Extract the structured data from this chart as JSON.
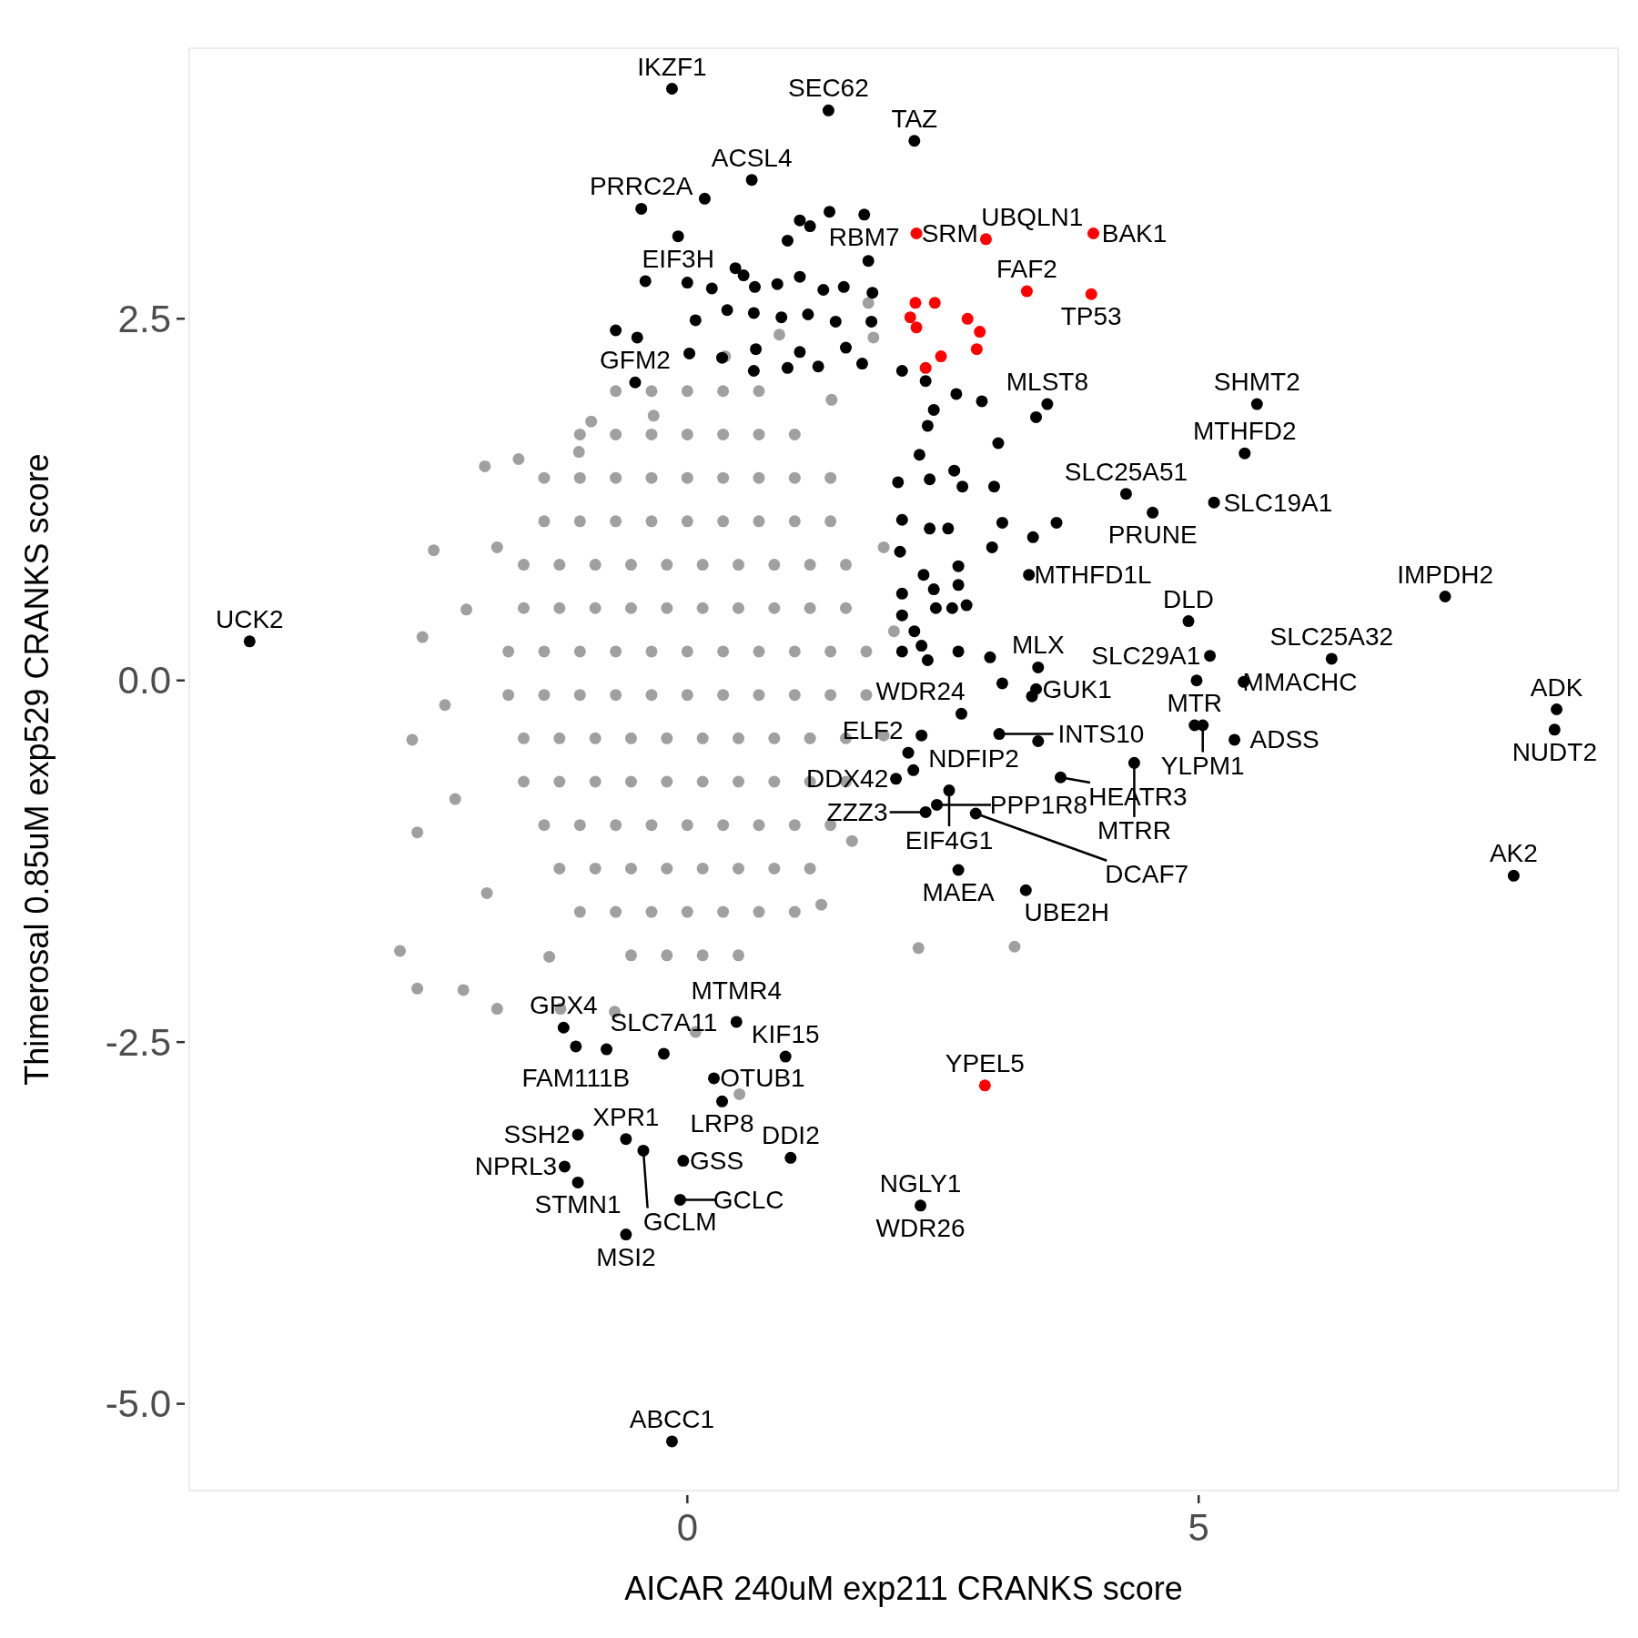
{
  "chart_data": {
    "type": "scatter",
    "xlabel": "AICAR 240uM exp211 CRANKS score",
    "ylabel": "Thimerosal 0.85uM exp529 CRANKS score",
    "xlim": [
      -4.87,
      9.1
    ],
    "ylim": [
      -5.6,
      4.37
    ],
    "xticks": [
      0,
      5
    ],
    "yticks": [
      {
        "value": -5,
        "label": "-5.0"
      },
      {
        "value": -2.5,
        "label": "-2.5"
      },
      {
        "value": 0,
        "label": "0.0"
      },
      {
        "value": 2.5,
        "label": "2.5"
      }
    ],
    "marker": "circle",
    "series": [
      {
        "color": "#a0a0a0",
        "x": [
          -0.7,
          -0.35,
          0,
          0.35,
          0.7,
          -1.05,
          -0.7,
          -0.35,
          0,
          0.35,
          0.7,
          1.05,
          -1.4,
          -1.05,
          -0.7,
          -0.35,
          0,
          0.35,
          0.7,
          1.05,
          1.4,
          -1.4,
          -1.05,
          -0.7,
          -0.35,
          0,
          0.35,
          0.7,
          1.05,
          1.4,
          -1.6,
          -1.25,
          -0.9,
          -0.55,
          -0.2,
          0.15,
          0.5,
          0.85,
          1.2,
          1.55,
          -1.6,
          -1.25,
          -0.9,
          -0.55,
          -0.2,
          0.15,
          0.5,
          0.85,
          1.2,
          1.55,
          -1.75,
          -1.4,
          -1.05,
          -0.7,
          -0.35,
          0,
          0.35,
          0.7,
          1.05,
          1.4,
          1.75,
          -1.75,
          -1.4,
          -1.05,
          -0.7,
          -0.35,
          0,
          0.35,
          0.7,
          1.05,
          1.4,
          1.75,
          -1.6,
          -1.25,
          -0.9,
          -0.55,
          -0.2,
          0.15,
          0.5,
          0.85,
          1.2,
          1.55,
          -1.6,
          -1.25,
          -0.9,
          -0.55,
          -0.2,
          0.15,
          0.5,
          0.85,
          1.2,
          1.55,
          -1.4,
          -1.05,
          -0.7,
          -0.35,
          0,
          0.35,
          0.7,
          1.05,
          1.4,
          -1.25,
          -0.9,
          -0.55,
          -0.2,
          0.15,
          0.5,
          0.85,
          1.2,
          -1.05,
          -0.7,
          -0.35,
          0,
          0.35,
          0.7,
          1.05,
          -0.55,
          -0.2,
          0.15,
          0.5,
          -2.48,
          -1.98,
          -1.65,
          -2.59,
          -2.69,
          -2.64,
          -2.81,
          -2.64,
          -2.19,
          -1.86,
          -1.24,
          -0.71,
          0.08,
          0.51,
          2.26,
          3.2,
          2.02,
          1.92,
          1.82,
          1.77,
          0.37,
          0.9,
          -1.06,
          -1.86,
          -2.16,
          -2.37,
          -2.27,
          -1.96,
          -1.35,
          1.31,
          1.61,
          1.92,
          -0.33,
          -0.94,
          1.41
        ],
        "values": [
          2.0,
          2.0,
          2.0,
          2.0,
          2.0,
          1.7,
          1.7,
          1.7,
          1.7,
          1.7,
          1.7,
          1.7,
          1.4,
          1.4,
          1.4,
          1.4,
          1.4,
          1.4,
          1.4,
          1.4,
          1.4,
          1.1,
          1.1,
          1.1,
          1.1,
          1.1,
          1.1,
          1.1,
          1.1,
          1.1,
          0.8,
          0.8,
          0.8,
          0.8,
          0.8,
          0.8,
          0.8,
          0.8,
          0.8,
          0.8,
          0.5,
          0.5,
          0.5,
          0.5,
          0.5,
          0.5,
          0.5,
          0.5,
          0.5,
          0.5,
          0.2,
          0.2,
          0.2,
          0.2,
          0.2,
          0.2,
          0.2,
          0.2,
          0.2,
          0.2,
          0.2,
          -0.1,
          -0.1,
          -0.1,
          -0.1,
          -0.1,
          -0.1,
          -0.1,
          -0.1,
          -0.1,
          -0.1,
          -0.1,
          -0.4,
          -0.4,
          -0.4,
          -0.4,
          -0.4,
          -0.4,
          -0.4,
          -0.4,
          -0.4,
          -0.4,
          -0.7,
          -0.7,
          -0.7,
          -0.7,
          -0.7,
          -0.7,
          -0.7,
          -0.7,
          -0.7,
          -0.7,
          -1.0,
          -1.0,
          -1.0,
          -1.0,
          -1.0,
          -1.0,
          -1.0,
          -1.0,
          -1.0,
          -1.3,
          -1.3,
          -1.3,
          -1.3,
          -1.3,
          -1.3,
          -1.3,
          -1.3,
          -1.6,
          -1.6,
          -1.6,
          -1.6,
          -1.6,
          -1.6,
          -1.6,
          -1.9,
          -1.9,
          -1.9,
          -1.9,
          0.9,
          1.48,
          1.53,
          0.3,
          -0.41,
          -1.05,
          -1.87,
          -2.13,
          -2.14,
          -2.27,
          -2.27,
          -2.29,
          -2.43,
          -2.86,
          -1.85,
          -1.84,
          0.34,
          0.92,
          2.37,
          2.61,
          2.24,
          2.39,
          1.58,
          0.92,
          0.49,
          -0.17,
          -0.82,
          -1.47,
          -1.91,
          -1.55,
          -1.11,
          -0.38,
          1.83,
          1.79,
          1.94
        ]
      },
      {
        "color": "#000000",
        "x": [
          -4.28,
          -0.15,
          1.38,
          2.22,
          0.63,
          -0.45,
          1.73,
          -0.09,
          -0.51,
          3.52,
          5.57,
          5.45,
          4.29,
          5.15,
          4.55,
          7.41,
          3.34,
          5.11,
          6.3,
          4.9,
          3.43,
          5.44,
          8.5,
          8.48,
          5.04,
          5.35,
          3.41,
          2.68,
          2.16,
          2.21,
          2.04,
          2.56,
          4.96,
          4.37,
          3.05,
          3.65,
          2.82,
          2.33,
          2.44,
          2.65,
          3.31,
          8.08,
          -1.21,
          -0.23,
          0.48,
          -1.09,
          0.96,
          0.26,
          0.34,
          -0.6,
          1.01,
          2.28,
          -1.07,
          -1.2,
          -1.07,
          -0.43,
          -0.07,
          -0.04,
          -0.6,
          -0.15,
          0.17,
          1.1,
          1.39,
          1.2,
          1.77,
          0.47,
          0.98,
          -0.41,
          0.0,
          0.24,
          0.55,
          0.66,
          0.88,
          1.1,
          1.33,
          1.53,
          1.81,
          0.08,
          0.39,
          0.65,
          0.92,
          1.18,
          1.45,
          1.8,
          -0.7,
          -0.49,
          0.02,
          0.34,
          0.67,
          1.1,
          1.28,
          1.55,
          1.71,
          0.65,
          0.98,
          2.1,
          2.33,
          2.63,
          2.88,
          2.41,
          2.35,
          3.04,
          2.27,
          2.61,
          2.06,
          2.37,
          2.69,
          3.0,
          3.08,
          3.61,
          3.38,
          2.1,
          2.37,
          2.55,
          2.98,
          2.08,
          2.31,
          2.65,
          2.41,
          2.65,
          2.1,
          2.43,
          2.59,
          2.73,
          2.1,
          2.22,
          2.29,
          2.1,
          2.35,
          2.65,
          2.96,
          3.08,
          3.37,
          3.43,
          2.29,
          3.41,
          4.98,
          -0.79
        ],
        "values": [
          0.27,
          4.09,
          3.94,
          3.73,
          3.46,
          3.26,
          3.22,
          3.07,
          2.06,
          1.91,
          1.91,
          1.57,
          1.29,
          1.23,
          1.16,
          0.58,
          0.73,
          0.17,
          0.15,
          0.41,
          0.09,
          -0.01,
          -0.2,
          -0.34,
          -0.31,
          -0.41,
          -0.06,
          -0.23,
          -0.5,
          -0.62,
          -0.68,
          -0.76,
          -0.31,
          -0.57,
          -0.37,
          -0.67,
          -0.92,
          -0.91,
          -0.86,
          -1.31,
          -1.45,
          -1.35,
          -2.4,
          -2.58,
          -2.36,
          -2.53,
          -2.6,
          -2.75,
          -2.91,
          -3.17,
          -3.3,
          -3.63,
          -3.14,
          -3.36,
          -3.47,
          -3.25,
          -3.59,
          -3.32,
          -3.83,
          -5.26,
          3.33,
          3.18,
          3.24,
          3.14,
          2.9,
          2.85,
          3.04,
          2.76,
          2.75,
          2.71,
          2.8,
          2.72,
          2.74,
          2.79,
          2.7,
          2.72,
          2.68,
          2.49,
          2.56,
          2.54,
          2.51,
          2.53,
          2.48,
          2.48,
          2.42,
          2.37,
          2.26,
          2.23,
          2.29,
          2.27,
          2.17,
          2.3,
          2.19,
          2.14,
          2.16,
          2.14,
          2.07,
          1.98,
          1.93,
          1.87,
          1.76,
          1.64,
          1.56,
          1.45,
          1.37,
          1.39,
          1.34,
          1.34,
          1.09,
          1.09,
          0.99,
          1.11,
          1.05,
          1.05,
          0.92,
          0.89,
          0.73,
          0.79,
          0.63,
          0.66,
          0.6,
          0.5,
          0.5,
          0.52,
          0.45,
          0.34,
          0.24,
          0.2,
          0.14,
          0.2,
          0.16,
          -0.02,
          -0.11,
          -0.42,
          -0.38,
          1.82,
          0.0,
          -2.55
        ]
      },
      {
        "color": "#ff0000",
        "x": [
          2.24,
          2.92,
          3.97,
          3.32,
          3.95,
          2.23,
          2.42,
          2.18,
          2.24,
          2.74,
          2.86,
          2.83,
          2.48,
          2.33,
          2.91
        ],
        "values": [
          3.09,
          3.05,
          3.09,
          2.69,
          2.67,
          2.61,
          2.61,
          2.51,
          2.44,
          2.5,
          2.41,
          2.29,
          2.24,
          2.16,
          -2.8
        ]
      }
    ],
    "annotations": [
      {
        "text": "UCK2",
        "x": -4.28,
        "y": 0.27
      },
      {
        "text": "IKZF1",
        "x": -0.15,
        "y": 4.09
      },
      {
        "text": "SEC62",
        "x": 1.38,
        "y": 3.94
      },
      {
        "text": "TAZ",
        "x": 2.22,
        "y": 3.73
      },
      {
        "text": "ACSL4",
        "x": 0.63,
        "y": 3.46
      },
      {
        "text": "PRRC2A",
        "x": -0.45,
        "y": 3.26
      },
      {
        "text": "RBM7",
        "x": 1.73,
        "y": 3.22
      },
      {
        "text": "EIF3H",
        "x": -0.09,
        "y": 3.07
      },
      {
        "text": "SRM",
        "x": 2.24,
        "y": 3.09
      },
      {
        "text": "UBQLN1",
        "x": 2.92,
        "y": 3.05
      },
      {
        "text": "BAK1",
        "x": 3.97,
        "y": 3.09
      },
      {
        "text": "FAF2",
        "x": 3.32,
        "y": 2.69
      },
      {
        "text": "TP53",
        "x": 3.95,
        "y": 2.67
      },
      {
        "text": "GFM2",
        "x": -0.51,
        "y": 2.06
      },
      {
        "text": "MLST8",
        "x": 3.52,
        "y": 1.91
      },
      {
        "text": "SHMT2",
        "x": 5.57,
        "y": 1.91
      },
      {
        "text": "MTHFD2",
        "x": 5.45,
        "y": 1.57
      },
      {
        "text": "SLC25A51",
        "x": 4.29,
        "y": 1.29
      },
      {
        "text": "SLC19A1",
        "x": 5.15,
        "y": 1.23
      },
      {
        "text": "PRUNE",
        "x": 4.55,
        "y": 1.16
      },
      {
        "text": "IMPDH2",
        "x": 7.41,
        "y": 0.58
      },
      {
        "text": "MTHFD1L",
        "x": 3.34,
        "y": 0.73
      },
      {
        "text": "SLC29A1",
        "x": 5.11,
        "y": 0.17
      },
      {
        "text": "SLC25A32",
        "x": 6.3,
        "y": 0.15
      },
      {
        "text": "DLD",
        "x": 4.9,
        "y": 0.41
      },
      {
        "text": "MLX",
        "x": 3.43,
        "y": 0.09
      },
      {
        "text": "MMACHC",
        "x": 5.44,
        "y": -0.01
      },
      {
        "text": "ADK",
        "x": 8.5,
        "y": -0.2
      },
      {
        "text": "NUDT2",
        "x": 8.48,
        "y": -0.34
      },
      {
        "text": "YLPM1",
        "x": 5.04,
        "y": -0.31
      },
      {
        "text": "ADSS",
        "x": 5.35,
        "y": -0.41
      },
      {
        "text": "GUK1",
        "x": 3.41,
        "y": -0.06
      },
      {
        "text": "WDR24",
        "x": 2.68,
        "y": -0.23
      },
      {
        "text": "ELF2",
        "x": 2.16,
        "y": -0.5
      },
      {
        "text": "NDFIP2",
        "x": 2.21,
        "y": -0.62
      },
      {
        "text": "DDX42",
        "x": 2.04,
        "y": -0.68
      },
      {
        "text": "EIF4G1",
        "x": 2.56,
        "y": -0.76
      },
      {
        "text": "MTR",
        "x": 4.96,
        "y": -0.31
      },
      {
        "text": "MTRR",
        "x": 4.37,
        "y": -0.57
      },
      {
        "text": "INTS10",
        "x": 3.05,
        "y": -0.37
      },
      {
        "text": "HEATR3",
        "x": 3.65,
        "y": -0.67
      },
      {
        "text": "DCAF7",
        "x": 2.82,
        "y": -0.92
      },
      {
        "text": "ZZZ3",
        "x": 2.33,
        "y": -0.91
      },
      {
        "text": "PPP1R8",
        "x": 2.44,
        "y": -0.86
      },
      {
        "text": "MAEA",
        "x": 2.65,
        "y": -1.31
      },
      {
        "text": "UBE2H",
        "x": 3.31,
        "y": -1.45
      },
      {
        "text": "AK2",
        "x": 8.08,
        "y": -1.35
      },
      {
        "text": "GPX4",
        "x": -1.21,
        "y": -2.4
      },
      {
        "text": "SLC7A11",
        "x": -0.23,
        "y": -2.58
      },
      {
        "text": "MTMR4",
        "x": 0.48,
        "y": -2.36
      },
      {
        "text": "FAM111B",
        "x": -1.09,
        "y": -2.53
      },
      {
        "text": "KIF15",
        "x": 0.96,
        "y": -2.6
      },
      {
        "text": "OTUB1",
        "x": 0.26,
        "y": -2.75
      },
      {
        "text": "LRP8",
        "x": 0.34,
        "y": -2.91
      },
      {
        "text": "DDI2",
        "x": 1.01,
        "y": -3.3
      },
      {
        "text": "YPEL5",
        "x": 2.91,
        "y": -2.8
      },
      {
        "text": "SSH2",
        "x": -1.07,
        "y": -3.14
      },
      {
        "text": "XPR1",
        "x": -0.6,
        "y": -3.17
      },
      {
        "text": "NGLY1",
        "x": 2.28,
        "y": -3.63
      },
      {
        "text": "WDR26",
        "x": 2.28,
        "y": -3.63
      },
      {
        "text": "NPRL3",
        "x": -1.2,
        "y": -3.36
      },
      {
        "text": "STMN1",
        "x": -1.07,
        "y": -3.47
      },
      {
        "text": "GCLM",
        "x": -0.43,
        "y": -3.25
      },
      {
        "text": "GCLC",
        "x": -0.07,
        "y": -3.59
      },
      {
        "text": "GSS",
        "x": -0.04,
        "y": -3.32
      },
      {
        "text": "MSI2",
        "x": -0.6,
        "y": -3.83
      },
      {
        "text": "ABCC1",
        "x": -0.15,
        "y": -5.26
      }
    ]
  }
}
